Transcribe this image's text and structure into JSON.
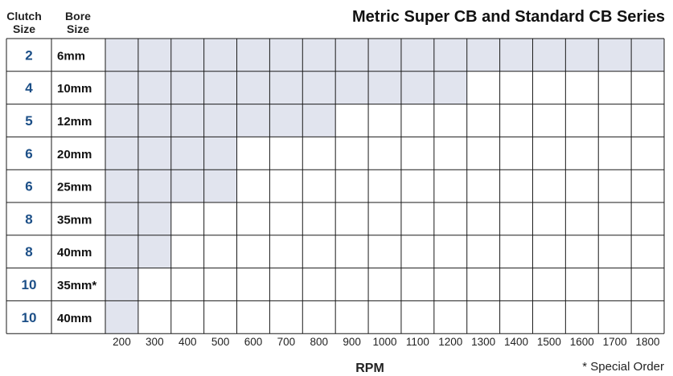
{
  "chart_data": {
    "type": "table",
    "title": "Metric Super CB and Standard CB Series",
    "column_headers": [
      "Clutch Size",
      "Bore Size"
    ],
    "xlabel": "RPM",
    "x_ticks": [
      "200",
      "300",
      "400",
      "500",
      "600",
      "700",
      "800",
      "900",
      "1000",
      "1100",
      "1200",
      "1300",
      "1400",
      "1500",
      "1600",
      "1700",
      "1800"
    ],
    "footnote": "* Special Order",
    "rows": [
      {
        "clutch_size": "2",
        "bore_size": "6mm",
        "max_rpm": 1800
      },
      {
        "clutch_size": "4",
        "bore_size": "10mm",
        "max_rpm": 1200
      },
      {
        "clutch_size": "5",
        "bore_size": "12mm",
        "max_rpm": 800
      },
      {
        "clutch_size": "6",
        "bore_size": "20mm",
        "max_rpm": 500
      },
      {
        "clutch_size": "6",
        "bore_size": "25mm",
        "max_rpm": 500
      },
      {
        "clutch_size": "8",
        "bore_size": "35mm",
        "max_rpm": 300
      },
      {
        "clutch_size": "8",
        "bore_size": "40mm",
        "max_rpm": 300
      },
      {
        "clutch_size": "10",
        "bore_size": "35mm*",
        "max_rpm": 200
      },
      {
        "clutch_size": "10",
        "bore_size": "40mm",
        "max_rpm": 200
      }
    ],
    "colors": {
      "filled": "#e1e4ee",
      "grid": "#1a1a1a",
      "clutch_text": "#1c4f87"
    }
  }
}
